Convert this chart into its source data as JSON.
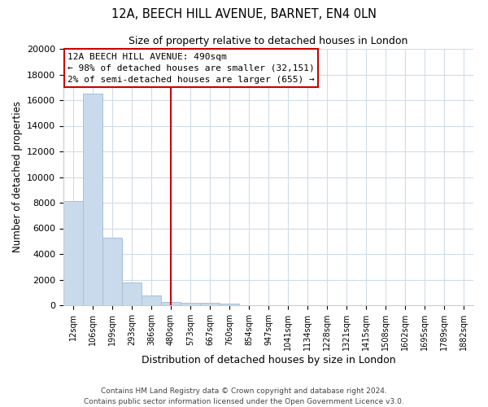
{
  "title": "12A, BEECH HILL AVENUE, BARNET, EN4 0LN",
  "subtitle": "Size of property relative to detached houses in London",
  "xlabel": "Distribution of detached houses by size in London",
  "ylabel": "Number of detached properties",
  "bar_color": "#c8daec",
  "bar_edge_color": "#a8c0d8",
  "background_color": "#ffffff",
  "grid_color": "#d0dce8",
  "categories": [
    "12sqm",
    "106sqm",
    "199sqm",
    "293sqm",
    "386sqm",
    "480sqm",
    "573sqm",
    "667sqm",
    "760sqm",
    "854sqm",
    "947sqm",
    "1041sqm",
    "1134sqm",
    "1228sqm",
    "1321sqm",
    "1415sqm",
    "1508sqm",
    "1602sqm",
    "1695sqm",
    "1789sqm",
    "1882sqm"
  ],
  "values": [
    8100,
    16500,
    5300,
    1750,
    750,
    250,
    200,
    200,
    150,
    0,
    0,
    0,
    0,
    0,
    0,
    0,
    0,
    0,
    0,
    0,
    0
  ],
  "ylim": [
    0,
    20000
  ],
  "yticks": [
    0,
    2000,
    4000,
    6000,
    8000,
    10000,
    12000,
    14000,
    16000,
    18000,
    20000
  ],
  "property_line_x": 5.0,
  "property_line_color": "#cc0000",
  "annotation_title": "12A BEECH HILL AVENUE: 490sqm",
  "annotation_line1": "← 98% of detached houses are smaller (32,151)",
  "annotation_line2": "2% of semi-detached houses are larger (655) →",
  "annotation_box_color": "#ffffff",
  "annotation_box_edge": "#cc0000",
  "footer_line1": "Contains HM Land Registry data © Crown copyright and database right 2024.",
  "footer_line2": "Contains public sector information licensed under the Open Government Licence v3.0."
}
